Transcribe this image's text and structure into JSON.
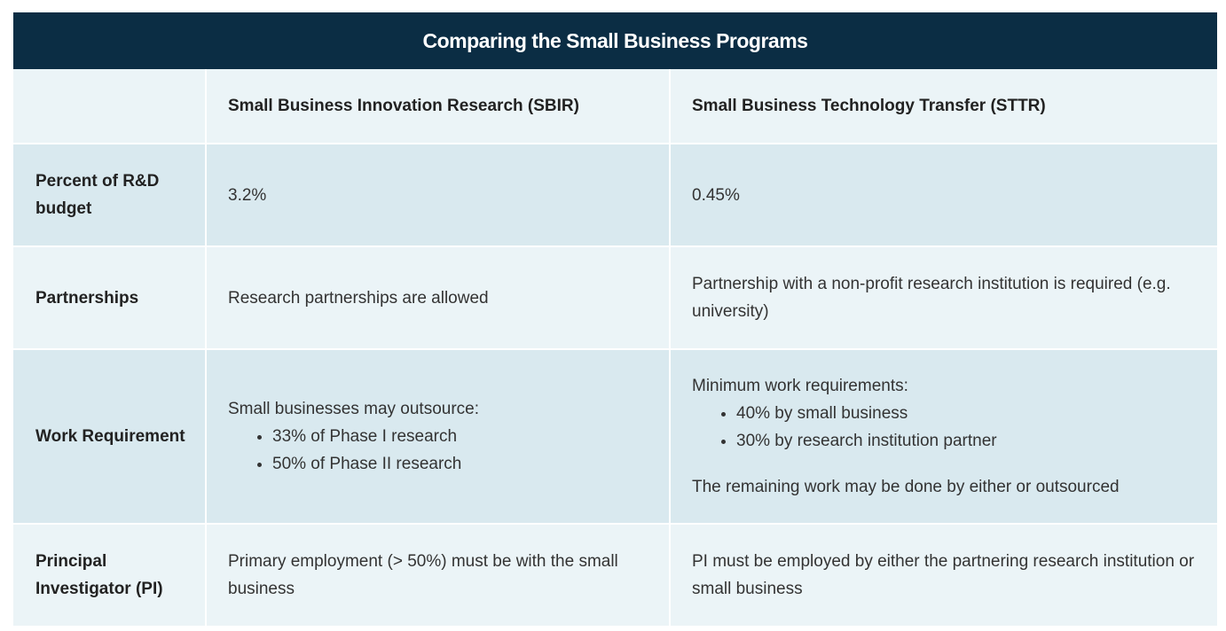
{
  "title": "Comparing  the Small Business Programs",
  "columns": [
    "",
    "Small Business Innovation Research (SBIR)",
    "Small Business Technology Transfer (STTR)"
  ],
  "rows": {
    "budget": {
      "label": "Percent of R&D budget",
      "sbir": "3.2%",
      "sttr": "0.45%"
    },
    "partnerships": {
      "label": "Partnerships",
      "sbir": "Research partnerships are allowed",
      "sttr": "Partnership with a non-profit research institution is required (e.g. university)"
    },
    "work": {
      "label": "Work Requirement",
      "sbir_intro": "Small businesses may outsource:",
      "sbir_items": [
        "33% of Phase I research",
        "50% of Phase II research"
      ],
      "sttr_intro": "Minimum work requirements:",
      "sttr_items": [
        "40% by small business",
        "30% by research institution partner"
      ],
      "sttr_note": "The remaining work may be done by either or outsourced"
    },
    "pi": {
      "label": "Principal Investigator (PI)",
      "sbir": "Primary employment (> 50%) must be with the small business",
      "sttr": "PI must be employed by either the partnering research institution or small business"
    }
  }
}
